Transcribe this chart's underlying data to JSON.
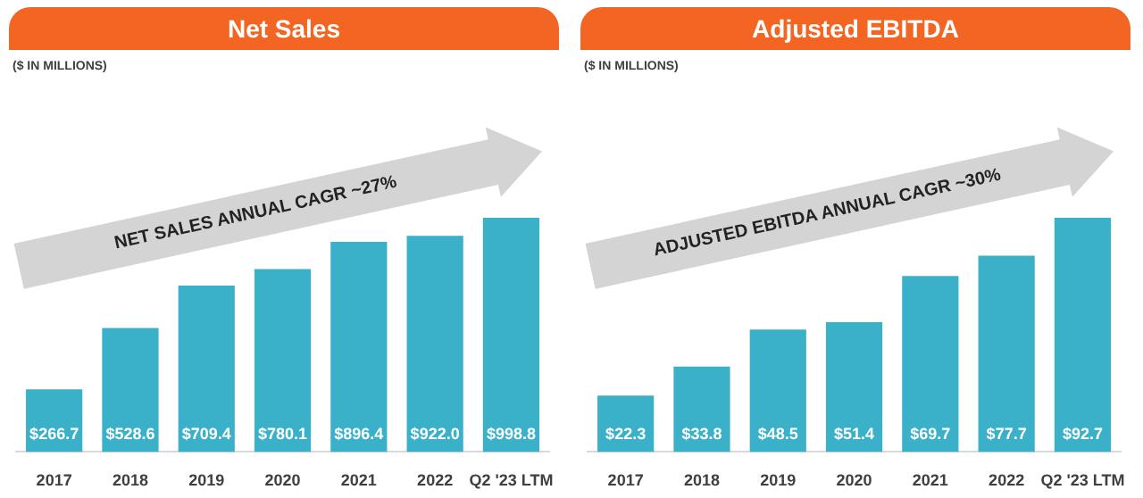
{
  "chart_data": [
    {
      "type": "bar",
      "title": "Net Sales",
      "subtitle": "($ IN MILLIONS)",
      "categories": [
        "2017",
        "2018",
        "2019",
        "2020",
        "2021",
        "2022",
        "Q2 '23 LTM"
      ],
      "values": [
        266.7,
        528.6,
        709.4,
        780.1,
        896.4,
        922.0,
        998.8
      ],
      "color": "#3bb0c9",
      "value_labels": [
        "$266.7",
        "$528.6",
        "$709.4",
        "$780.1",
        "$896.4",
        "$922.0",
        "$998.8"
      ],
      "annotations": [
        "NET SALES ANNUAL CAGR ~27%"
      ]
    },
    {
      "type": "bar",
      "title": "Adjusted EBITDA",
      "subtitle": "($ IN MILLIONS)",
      "categories": [
        "2017",
        "2018",
        "2019",
        "2020",
        "2021",
        "2022",
        "Q2 '23 LTM"
      ],
      "values": [
        22.3,
        33.8,
        48.5,
        51.4,
        69.7,
        77.7,
        92.7
      ],
      "color": "#3bb0c9",
      "value_labels": [
        "$22.3",
        "$33.8",
        "$48.5",
        "$51.4",
        "$69.7",
        "$77.7",
        "$92.7"
      ],
      "annotations": [
        "ADJUSTED EBITDA ANNUAL CAGR ~30%"
      ]
    }
  ]
}
